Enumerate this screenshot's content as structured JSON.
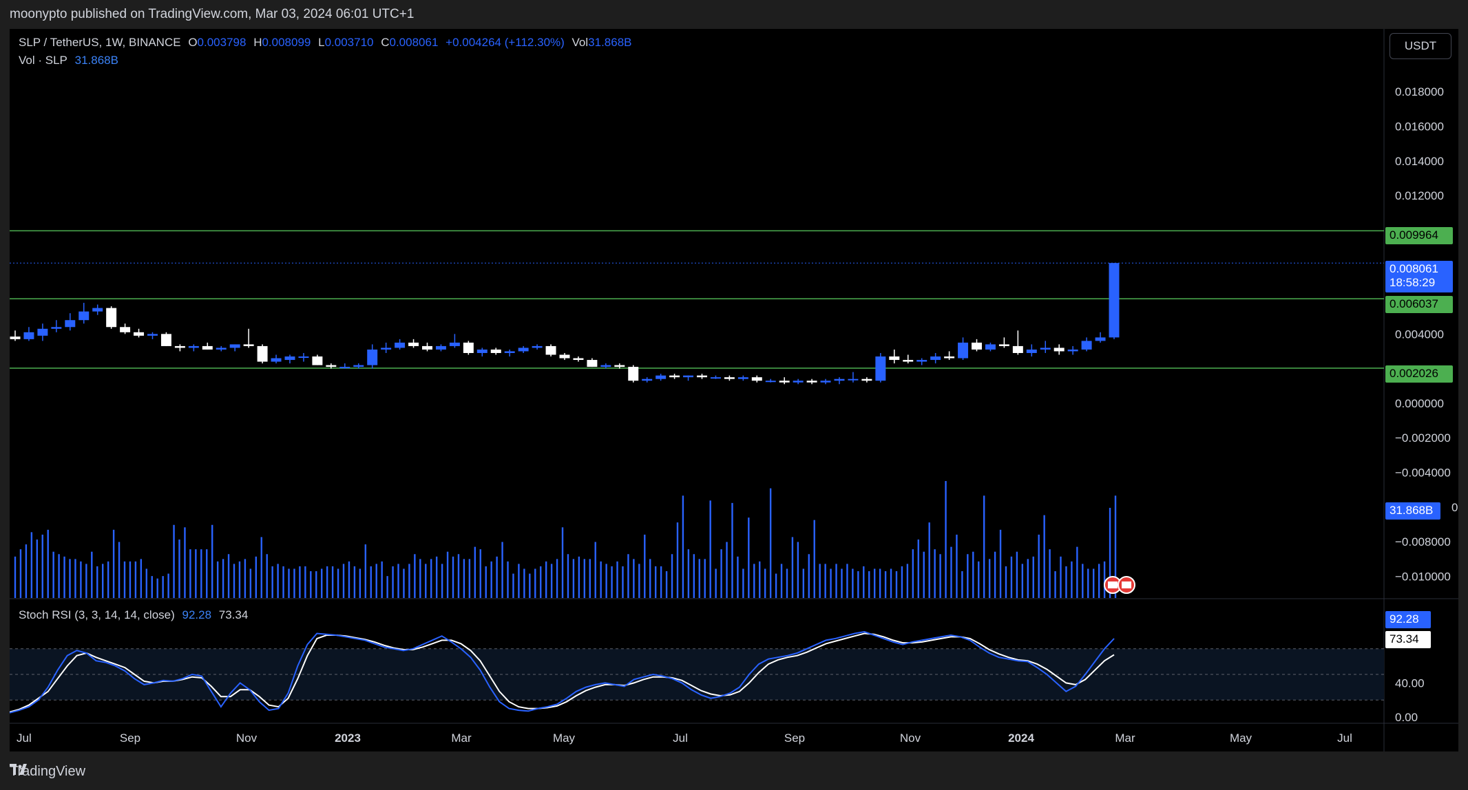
{
  "header": {
    "publisher_line": "moonypto published on TradingView.com, Mar 03, 2024 06:01 UTC+1"
  },
  "legend": {
    "symbol": "SLP / TetherUS, 1W, BINANCE",
    "o_label": "O",
    "o_value": "0.003798",
    "h_label": "H",
    "h_value": "0.008099",
    "l_label": "L",
    "l_value": "0.003710",
    "c_label": "C",
    "c_value": "0.008061",
    "change": "+0.004264 (+112.30%)",
    "vol_label": "Vol",
    "vol_value": "31.868B",
    "vol_row_label": "Vol · SLP",
    "vol_row_value": "31.868B"
  },
  "toolbar": {
    "currency_label": "USDT"
  },
  "price_axis": {
    "ticks": [
      "0.018000",
      "0.016000",
      "0.014000",
      "0.012000",
      "0.004000",
      "0.000000",
      "−0.002000",
      "−0.004000",
      "−0.008000",
      "−0.010000"
    ],
    "partial_tick": "0"
  },
  "price_tags": {
    "level_top": "0.009964",
    "current_price": "0.008061",
    "countdown": "18:58:29",
    "level_mid": "0.006037",
    "level_low": "0.002026",
    "volume": "31.868B"
  },
  "rsi": {
    "label": "Stoch RSI (3, 3, 14, 14, close)",
    "k_value": "92.28",
    "d_value": "73.34",
    "axis_ticks": [
      "40.00",
      "0.00"
    ],
    "tag_k": "92.28",
    "tag_d": "73.34"
  },
  "time_axis": [
    "Jul",
    "Sep",
    "Nov",
    "2023",
    "Mar",
    "May",
    "Jul",
    "Sep",
    "Nov",
    "2024",
    "Mar",
    "May",
    "Jul"
  ],
  "footer": {
    "brand": "TradingView"
  },
  "colors": {
    "background": "#000000",
    "up_candle": "#2962ff",
    "down_candle": "#ffffff",
    "level_line": "#4caf50",
    "level_tag": "#4caf50",
    "price_tag": "#2962ff",
    "rsi_k": "#2962ff",
    "rsi_d": "#ffffff"
  },
  "chart_data": {
    "type": "candlestick",
    "interval": "1W",
    "symbol": "SLP/USDT",
    "ylim": [
      -0.0105,
      0.0194
    ],
    "levels": [
      0.009964,
      0.006037,
      0.002026
    ],
    "candles": [
      {
        "o": 0.00385,
        "h": 0.0042,
        "l": 0.0036,
        "c": 0.0037
      },
      {
        "o": 0.0037,
        "h": 0.0044,
        "l": 0.0036,
        "c": 0.0041
      },
      {
        "o": 0.0039,
        "h": 0.0046,
        "l": 0.0036,
        "c": 0.0043
      },
      {
        "o": 0.0043,
        "h": 0.0048,
        "l": 0.0041,
        "c": 0.0044
      },
      {
        "o": 0.0044,
        "h": 0.0052,
        "l": 0.0042,
        "c": 0.0048
      },
      {
        "o": 0.0048,
        "h": 0.0058,
        "l": 0.0046,
        "c": 0.0053
      },
      {
        "o": 0.0053,
        "h": 0.0057,
        "l": 0.0051,
        "c": 0.0055
      },
      {
        "o": 0.0055,
        "h": 0.0056,
        "l": 0.0043,
        "c": 0.0044
      },
      {
        "o": 0.0044,
        "h": 0.0046,
        "l": 0.004,
        "c": 0.0041
      },
      {
        "o": 0.0041,
        "h": 0.0043,
        "l": 0.0038,
        "c": 0.0039
      },
      {
        "o": 0.0039,
        "h": 0.0041,
        "l": 0.0037,
        "c": 0.004
      },
      {
        "o": 0.004,
        "h": 0.0041,
        "l": 0.0033,
        "c": 0.0033
      },
      {
        "o": 0.0033,
        "h": 0.0034,
        "l": 0.003,
        "c": 0.0032
      },
      {
        "o": 0.0032,
        "h": 0.0034,
        "l": 0.003,
        "c": 0.0033
      },
      {
        "o": 0.0033,
        "h": 0.0035,
        "l": 0.0031,
        "c": 0.0031
      },
      {
        "o": 0.0031,
        "h": 0.0033,
        "l": 0.003,
        "c": 0.0032
      },
      {
        "o": 0.0032,
        "h": 0.0034,
        "l": 0.003,
        "c": 0.0034
      },
      {
        "o": 0.0034,
        "h": 0.0043,
        "l": 0.0032,
        "c": 0.0033
      },
      {
        "o": 0.0033,
        "h": 0.0034,
        "l": 0.0023,
        "c": 0.0024
      },
      {
        "o": 0.0024,
        "h": 0.0028,
        "l": 0.0023,
        "c": 0.0026
      },
      {
        "o": 0.0025,
        "h": 0.0028,
        "l": 0.0023,
        "c": 0.0027
      },
      {
        "o": 0.0027,
        "h": 0.0029,
        "l": 0.0024,
        "c": 0.0027
      },
      {
        "o": 0.0027,
        "h": 0.0028,
        "l": 0.0022,
        "c": 0.0022
      },
      {
        "o": 0.0022,
        "h": 0.0023,
        "l": 0.002,
        "c": 0.0021
      },
      {
        "o": 0.0021,
        "h": 0.0023,
        "l": 0.002,
        "c": 0.0021
      },
      {
        "o": 0.0021,
        "h": 0.0023,
        "l": 0.002,
        "c": 0.0022
      },
      {
        "o": 0.0022,
        "h": 0.0034,
        "l": 0.002,
        "c": 0.0031
      },
      {
        "o": 0.0031,
        "h": 0.0035,
        "l": 0.0029,
        "c": 0.0032
      },
      {
        "o": 0.0032,
        "h": 0.0037,
        "l": 0.0031,
        "c": 0.0035
      },
      {
        "o": 0.0035,
        "h": 0.0037,
        "l": 0.0032,
        "c": 0.0033
      },
      {
        "o": 0.0033,
        "h": 0.0035,
        "l": 0.003,
        "c": 0.0031
      },
      {
        "o": 0.0031,
        "h": 0.0034,
        "l": 0.003,
        "c": 0.0033
      },
      {
        "o": 0.0033,
        "h": 0.004,
        "l": 0.0032,
        "c": 0.0035
      },
      {
        "o": 0.0035,
        "h": 0.0036,
        "l": 0.0028,
        "c": 0.0029
      },
      {
        "o": 0.0029,
        "h": 0.0032,
        "l": 0.0027,
        "c": 0.0031
      },
      {
        "o": 0.0031,
        "h": 0.0032,
        "l": 0.0028,
        "c": 0.0029
      },
      {
        "o": 0.0029,
        "h": 0.0031,
        "l": 0.0027,
        "c": 0.003
      },
      {
        "o": 0.003,
        "h": 0.0033,
        "l": 0.0029,
        "c": 0.0032
      },
      {
        "o": 0.0032,
        "h": 0.0034,
        "l": 0.0031,
        "c": 0.0033
      },
      {
        "o": 0.0033,
        "h": 0.0034,
        "l": 0.0027,
        "c": 0.0028
      },
      {
        "o": 0.0028,
        "h": 0.0029,
        "l": 0.0025,
        "c": 0.0026
      },
      {
        "o": 0.0026,
        "h": 0.0027,
        "l": 0.0024,
        "c": 0.0025
      },
      {
        "o": 0.0025,
        "h": 0.0026,
        "l": 0.0021,
        "c": 0.0021
      },
      {
        "o": 0.0021,
        "h": 0.0023,
        "l": 0.002,
        "c": 0.0022
      },
      {
        "o": 0.0022,
        "h": 0.0023,
        "l": 0.002,
        "c": 0.0021
      },
      {
        "o": 0.0021,
        "h": 0.0022,
        "l": 0.0012,
        "c": 0.0013
      },
      {
        "o": 0.0013,
        "h": 0.0015,
        "l": 0.0012,
        "c": 0.0014
      },
      {
        "o": 0.0014,
        "h": 0.0017,
        "l": 0.0013,
        "c": 0.0016
      },
      {
        "o": 0.0016,
        "h": 0.0017,
        "l": 0.0014,
        "c": 0.0015
      },
      {
        "o": 0.0015,
        "h": 0.0016,
        "l": 0.0013,
        "c": 0.0016
      },
      {
        "o": 0.0016,
        "h": 0.0017,
        "l": 0.0014,
        "c": 0.0015
      },
      {
        "o": 0.0015,
        "h": 0.0016,
        "l": 0.0014,
        "c": 0.0015
      },
      {
        "o": 0.0015,
        "h": 0.0016,
        "l": 0.0013,
        "c": 0.0014
      },
      {
        "o": 0.0014,
        "h": 0.0016,
        "l": 0.0013,
        "c": 0.0015
      },
      {
        "o": 0.0015,
        "h": 0.0016,
        "l": 0.0012,
        "c": 0.0013
      },
      {
        "o": 0.0013,
        "h": 0.0014,
        "l": 0.0012,
        "c": 0.0013
      },
      {
        "o": 0.0013,
        "h": 0.0015,
        "l": 0.0011,
        "c": 0.0012
      },
      {
        "o": 0.0012,
        "h": 0.0014,
        "l": 0.0011,
        "c": 0.0013
      },
      {
        "o": 0.0013,
        "h": 0.0014,
        "l": 0.0011,
        "c": 0.0012
      },
      {
        "o": 0.0012,
        "h": 0.0014,
        "l": 0.0011,
        "c": 0.0013
      },
      {
        "o": 0.0013,
        "h": 0.0015,
        "l": 0.0011,
        "c": 0.0014
      },
      {
        "o": 0.0014,
        "h": 0.0018,
        "l": 0.0012,
        "c": 0.0014
      },
      {
        "o": 0.0014,
        "h": 0.0015,
        "l": 0.0012,
        "c": 0.0013
      },
      {
        "o": 0.0013,
        "h": 0.0029,
        "l": 0.0012,
        "c": 0.0027
      },
      {
        "o": 0.0027,
        "h": 0.0031,
        "l": 0.0023,
        "c": 0.0025
      },
      {
        "o": 0.0025,
        "h": 0.0028,
        "l": 0.0023,
        "c": 0.0024
      },
      {
        "o": 0.0024,
        "h": 0.0026,
        "l": 0.0022,
        "c": 0.0025
      },
      {
        "o": 0.0025,
        "h": 0.0029,
        "l": 0.0023,
        "c": 0.0027
      },
      {
        "o": 0.0027,
        "h": 0.003,
        "l": 0.0025,
        "c": 0.0026
      },
      {
        "o": 0.0026,
        "h": 0.0038,
        "l": 0.0025,
        "c": 0.0035
      },
      {
        "o": 0.0035,
        "h": 0.0037,
        "l": 0.003,
        "c": 0.0031
      },
      {
        "o": 0.0031,
        "h": 0.0035,
        "l": 0.003,
        "c": 0.0034
      },
      {
        "o": 0.0034,
        "h": 0.0038,
        "l": 0.0032,
        "c": 0.0033
      },
      {
        "o": 0.0033,
        "h": 0.0042,
        "l": 0.0028,
        "c": 0.0029
      },
      {
        "o": 0.0029,
        "h": 0.0034,
        "l": 0.0027,
        "c": 0.0031
      },
      {
        "o": 0.0031,
        "h": 0.0036,
        "l": 0.0029,
        "c": 0.0032
      },
      {
        "o": 0.0032,
        "h": 0.0034,
        "l": 0.0028,
        "c": 0.003
      },
      {
        "o": 0.003,
        "h": 0.0033,
        "l": 0.0028,
        "c": 0.0031
      },
      {
        "o": 0.0031,
        "h": 0.0038,
        "l": 0.003,
        "c": 0.0036
      },
      {
        "o": 0.0036,
        "h": 0.0041,
        "l": 0.0035,
        "c": 0.0038
      },
      {
        "o": 0.0038,
        "h": 0.0081,
        "l": 0.0037,
        "c": 0.0081
      }
    ],
    "volume": [
      17,
      20,
      22,
      27,
      24,
      26,
      28,
      19,
      18,
      17,
      16,
      16,
      15,
      14,
      19,
      13,
      14,
      15,
      28,
      23,
      15,
      15,
      15,
      16,
      12,
      9,
      8,
      9,
      10,
      30,
      24,
      29,
      20,
      20,
      20,
      20,
      30,
      15,
      16,
      18,
      14,
      15,
      16,
      12,
      17,
      25,
      18,
      13,
      14,
      13,
      12,
      12,
      13,
      13,
      11,
      11,
      12,
      13,
      13,
      12,
      14,
      15,
      13,
      12,
      22,
      13,
      14,
      15,
      9,
      13,
      14,
      12,
      14,
      18,
      16,
      14,
      16,
      17,
      14,
      19,
      17,
      18,
      16,
      16,
      21,
      20,
      13,
      15,
      17,
      23,
      15,
      10,
      14,
      12,
      10,
      12,
      13,
      15,
      14,
      16,
      29,
      18,
      16,
      17,
      16,
      16,
      23,
      15,
      14,
      13,
      15,
      13,
      18,
      16,
      14,
      26,
      16,
      13,
      13,
      11,
      18,
      31,
      42,
      20,
      18,
      16,
      16,
      40,
      12,
      20,
      23,
      39,
      17,
      12,
      33,
      14,
      15,
      12,
      45,
      10,
      14,
      12,
      25,
      23,
      12,
      18,
      32,
      14,
      14,
      12,
      14,
      12,
      14,
      12,
      11,
      13,
      11,
      12,
      12,
      11,
      12,
      11,
      13,
      14,
      20,
      24,
      19,
      31,
      20,
      18,
      48,
      21,
      26,
      11,
      18,
      19,
      15,
      42,
      16,
      19,
      28,
      13,
      17,
      19,
      14,
      16,
      17,
      26,
      34,
      20,
      11,
      17,
      13,
      15,
      21,
      14,
      12,
      12,
      14,
      15,
      37,
      42
    ],
    "stoch_rsi_k": [
      5,
      8,
      12,
      20,
      35,
      55,
      72,
      78,
      75,
      66,
      64,
      60,
      54,
      45,
      38,
      40,
      43,
      42,
      45,
      50,
      48,
      30,
      12,
      28,
      40,
      32,
      18,
      8,
      10,
      28,
      60,
      85,
      98,
      97,
      96,
      94,
      92,
      90,
      86,
      82,
      80,
      78,
      80,
      85,
      90,
      95,
      88,
      80,
      70,
      55,
      35,
      18,
      10,
      8,
      7,
      10,
      12,
      15,
      22,
      30,
      35,
      38,
      40,
      38,
      36,
      44,
      47,
      50,
      48,
      45,
      40,
      32,
      26,
      22,
      24,
      28,
      35,
      50,
      62,
      68,
      70,
      72,
      75,
      80,
      85,
      90,
      92,
      95,
      98,
      100,
      96,
      92,
      88,
      85,
      88,
      90,
      92,
      94,
      96,
      94,
      90,
      82,
      75,
      70,
      68,
      66,
      65,
      58,
      50,
      40,
      30,
      36,
      50,
      65,
      80,
      92
    ],
    "stoch_rsi_d": [
      6,
      9,
      14,
      22,
      30,
      45,
      60,
      72,
      75,
      70,
      66,
      62,
      58,
      50,
      42,
      40,
      42,
      42,
      44,
      47,
      46,
      36,
      24,
      24,
      32,
      32,
      24,
      14,
      12,
      22,
      45,
      72,
      92,
      96,
      96,
      95,
      93,
      91,
      88,
      84,
      81,
      79,
      79,
      82,
      86,
      90,
      90,
      86,
      78,
      66,
      48,
      30,
      18,
      12,
      10,
      10,
      11,
      13,
      18,
      25,
      31,
      35,
      38,
      38,
      37,
      40,
      44,
      47,
      47,
      46,
      43,
      37,
      31,
      27,
      25,
      26,
      30,
      40,
      52,
      62,
      67,
      70,
      72,
      76,
      81,
      86,
      89,
      92,
      95,
      98,
      97,
      94,
      90,
      87,
      87,
      88,
      90,
      92,
      94,
      94,
      92,
      86,
      79,
      74,
      70,
      67,
      66,
      62,
      56,
      48,
      40,
      38,
      44,
      55,
      66,
      73
    ]
  }
}
